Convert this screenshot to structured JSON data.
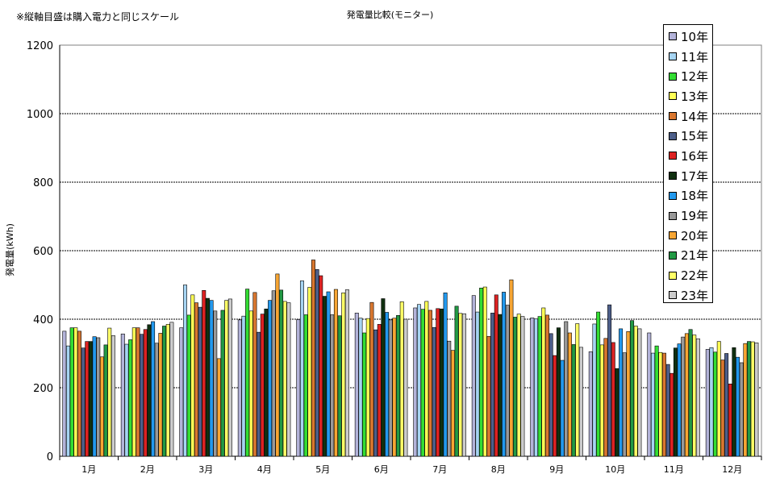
{
  "note": "※縦軸目盛は購入電力と同じスケール",
  "chart_data": {
    "type": "bar",
    "title": "発電量比較(モニター)",
    "xlabel": "",
    "ylabel": "発電量(kWh)",
    "ylim": [
      0,
      1200
    ],
    "yticks": [
      0,
      200,
      400,
      600,
      800,
      1000,
      1200
    ],
    "grid": true,
    "legend_position": "top-right",
    "categories": [
      "1月",
      "2月",
      "3月",
      "4月",
      "5月",
      "6月",
      "7月",
      "8月",
      "9月",
      "10月",
      "11月",
      "12月"
    ],
    "series": [
      {
        "name": "10年",
        "color": "#b3b3d9",
        "values": [
          365,
          357,
          375,
          398,
          399,
          418,
          433,
          469,
          404,
          305,
          360,
          312
        ]
      },
      {
        "name": "11年",
        "color": "#a6d4f2",
        "values": [
          322,
          327,
          500,
          409,
          512,
          403,
          443,
          421,
          401,
          386,
          301,
          317
        ]
      },
      {
        "name": "12年",
        "color": "#33dd33",
        "values": [
          375,
          340,
          412,
          488,
          413,
          360,
          429,
          491,
          408,
          421,
          322,
          304
        ]
      },
      {
        "name": "13年",
        "color": "#ffff55",
        "values": [
          375,
          375,
          471,
          424,
          493,
          402,
          452,
          494,
          433,
          325,
          303,
          335
        ]
      },
      {
        "name": "14年",
        "color": "#d9772f",
        "values": [
          365,
          375,
          448,
          478,
          573,
          449,
          426,
          350,
          412,
          344,
          301,
          281
        ]
      },
      {
        "name": "15年",
        "color": "#4d5f8a",
        "values": [
          316,
          356,
          435,
          362,
          545,
          369,
          376,
          418,
          358,
          442,
          268,
          300
        ]
      },
      {
        "name": "16年",
        "color": "#dd2222",
        "values": [
          335,
          370,
          484,
          415,
          527,
          385,
          431,
          471,
          294,
          332,
          242,
          211
        ]
      },
      {
        "name": "17年",
        "color": "#103010",
        "values": [
          335,
          384,
          461,
          430,
          467,
          460,
          430,
          414,
          375,
          256,
          316,
          317
        ]
      },
      {
        "name": "18年",
        "color": "#2299ee",
        "values": [
          349,
          393,
          455,
          455,
          480,
          420,
          477,
          479,
          280,
          372,
          328,
          289
        ]
      },
      {
        "name": "19年",
        "color": "#999999",
        "values": [
          346,
          330,
          424,
          483,
          413,
          398,
          336,
          441,
          393,
          302,
          348,
          273
        ]
      },
      {
        "name": "20年",
        "color": "#f7a533",
        "values": [
          290,
          359,
          285,
          532,
          487,
          403,
          309,
          515,
          360,
          364,
          358,
          329
        ]
      },
      {
        "name": "21年",
        "color": "#229944",
        "values": [
          325,
          380,
          426,
          485,
          410,
          411,
          438,
          406,
          326,
          396,
          370,
          335
        ]
      },
      {
        "name": "22年",
        "color": "#ffff66",
        "values": [
          374,
          385,
          455,
          452,
          477,
          451,
          417,
          415,
          387,
          380,
          354,
          334
        ]
      },
      {
        "name": "23年",
        "color": "#cccccc",
        "values": [
          352,
          391,
          459,
          448,
          486,
          400,
          416,
          408,
          318,
          372,
          343,
          331
        ]
      }
    ]
  }
}
